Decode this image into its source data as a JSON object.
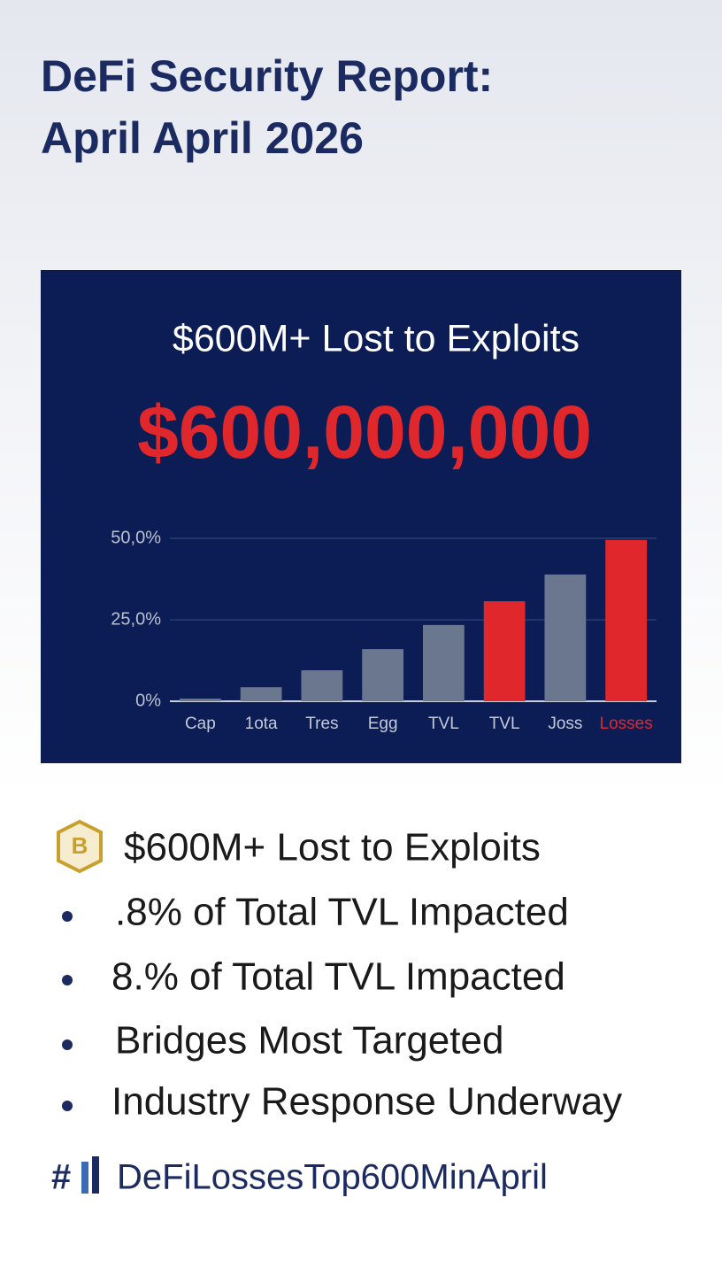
{
  "header": {
    "title_lines": [
      "DeFi Security Report:",
      "April April 2026"
    ]
  },
  "chart_data": {
    "type": "bar",
    "title": "$600M+ Lost to Exploits",
    "subtitle": "$600,000,000",
    "categories": [
      "Cap",
      "1ota",
      "Tres",
      "Egg",
      "TVL",
      "TVL",
      "Joss",
      "Losses"
    ],
    "values": [
      0.8,
      4.3,
      9.5,
      16,
      23.4,
      30.7,
      38.9,
      49.5
    ],
    "colors": [
      "#6b778f",
      "#6b778f",
      "#6b778f",
      "#6b778f",
      "#6b778f",
      "#e0282c",
      "#6b778f",
      "#e0282c"
    ],
    "category_label_colors": [
      "#c3c9d8",
      "#c3c9d8",
      "#c3c9d8",
      "#c3c9d8",
      "#c3c9d8",
      "#c3c9d8",
      "#c3c9d8",
      "#e0282c"
    ],
    "ylim": [
      0,
      50
    ],
    "yticks": [
      {
        "value": 0,
        "label": "0%"
      },
      {
        "value": 25,
        "label": "25,0%"
      },
      {
        "value": 50,
        "label": "50,0%"
      }
    ],
    "grid": true
  },
  "highlights": {
    "icon_letter": "B",
    "headline": "$600M+ Lost to Exploits",
    "bullets": [
      ".8% of Total TVL Impacted",
      "8.% of Total TVL Impacted",
      "Bridges Most Targeted",
      "Industry Response Underway"
    ]
  },
  "footer": {
    "hashtag_symbol": "#",
    "hashtag": "DeFiLossesTop600MinApril"
  }
}
